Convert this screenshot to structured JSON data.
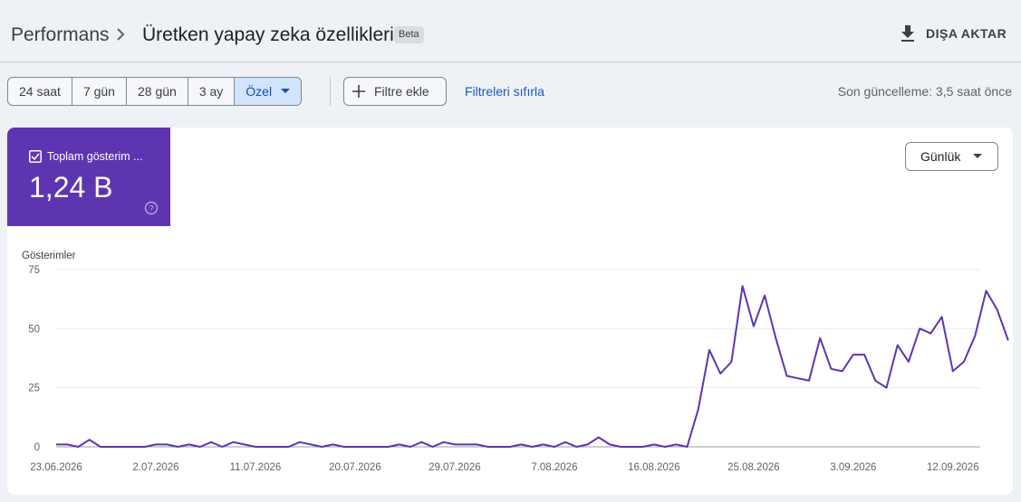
{
  "header": {
    "breadcrumb_root": "Performans",
    "title": "Üretken yapay zeka özellikleri",
    "badge": "Beta",
    "export_label": "DIŞA AKTAR",
    "export_icon": "download-icon"
  },
  "toolbar": {
    "ranges": [
      "24 saat",
      "7 gün",
      "28 gün",
      "3 ay",
      "Özel"
    ],
    "active_range": "Özel",
    "add_filter_label": "Filtre ekle",
    "reset_filters_label": "Filtreleri sıfırla",
    "last_update": "Son güncelleme: 3,5 saat önce"
  },
  "metric": {
    "label": "Toplam gösterim ...",
    "value": "1,24 B",
    "checked": true,
    "color": "#5e35b1"
  },
  "granularity": {
    "selected": "Günlük"
  },
  "chart_data": {
    "type": "line",
    "ylabel": "Gösterimler",
    "ylim": [
      0,
      75
    ],
    "yticks": [
      0,
      25,
      50,
      75
    ],
    "xticks": [
      "23.06.2026",
      "2.07.2026",
      "11.07.2026",
      "20.07.2026",
      "29.07.2026",
      "7.08.2026",
      "16.08.2026",
      "25.08.2026",
      "3.09.2026",
      "12.09.2026"
    ],
    "x_start": "23.06.2026",
    "x_end": "16.09.2026",
    "grid": true,
    "line_color": "#5e35b1",
    "series": [
      {
        "values": [
          1,
          1,
          0,
          3,
          0,
          0,
          0,
          0,
          0,
          1,
          1,
          0,
          1,
          0,
          2,
          0,
          2,
          1,
          0,
          0,
          0,
          0,
          2,
          1,
          0,
          1,
          0,
          0,
          0,
          0,
          0,
          1,
          0,
          2,
          0,
          2,
          1,
          1,
          1,
          0,
          0,
          0,
          1,
          0,
          1,
          0,
          2,
          0,
          1,
          4,
          1,
          0,
          0,
          0,
          1,
          0,
          1,
          0,
          16,
          41,
          31,
          36,
          68,
          51,
          64,
          46,
          30,
          29,
          28,
          46,
          33,
          32,
          39,
          39,
          28,
          25,
          43,
          36,
          50,
          48,
          55,
          32,
          36,
          47,
          66,
          58,
          45
        ]
      }
    ]
  }
}
